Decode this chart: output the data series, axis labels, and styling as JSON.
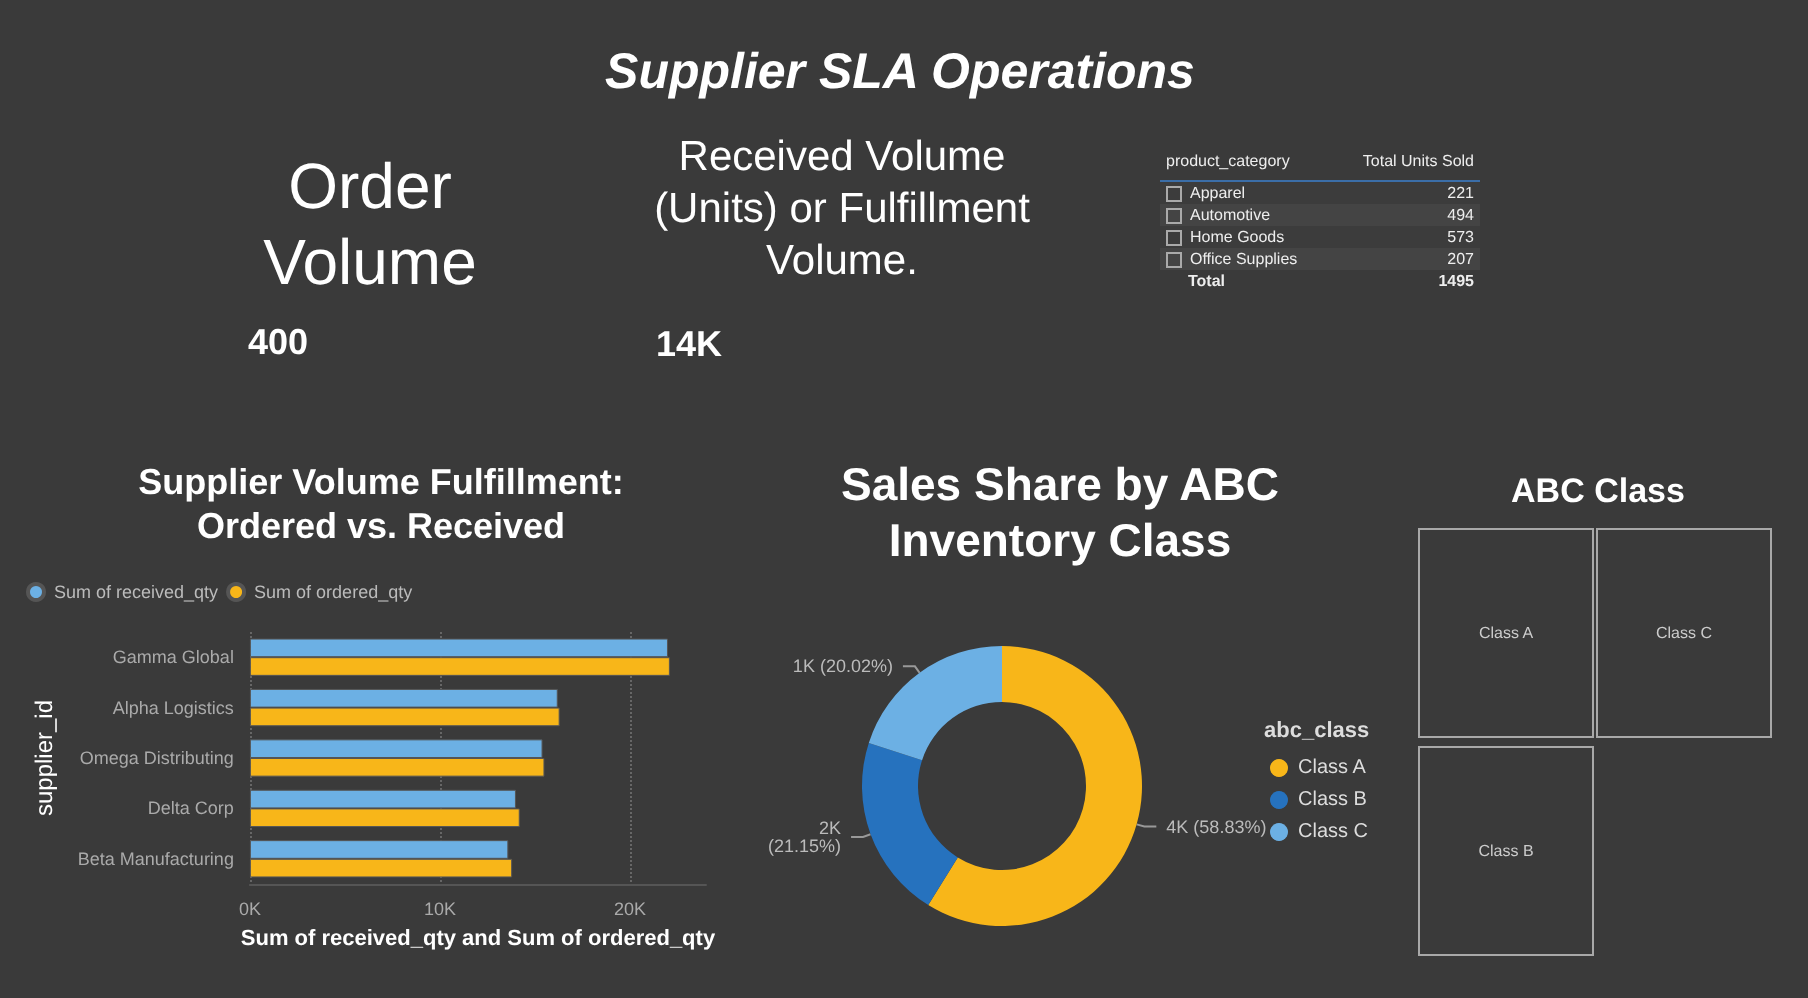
{
  "chart_data": [
    {
      "type": "other",
      "title": "Supplier SLA Operations"
    },
    {
      "type": "other",
      "title": "Order Volume",
      "annotations": [
        "400"
      ]
    },
    {
      "type": "other",
      "title": "Received Volume (Units) or Fulfillment Volume.",
      "annotations": [
        "14K"
      ]
    },
    {
      "type": "other",
      "xlabel": "product_category",
      "ylabel": "Total Units Sold",
      "categories": [
        "Apparel",
        "Automotive",
        "Home Goods",
        "Office Supplies"
      ],
      "values": [
        221,
        494,
        573,
        207
      ],
      "data_labels": true,
      "annotations": [
        "Total",
        "1495"
      ]
    },
    {
      "type": "bar",
      "orientation": "horizontal",
      "title": "Supplier Volume Fulfillment: Ordered vs. Received",
      "xlabel": "Sum of received_qty and Sum of ordered_qty",
      "ylabel": "supplier_id",
      "categories": [
        "Gamma Global",
        "Alpha Logistics",
        "Omega Distributing",
        "Delta Corp",
        "Beta Manufacturing"
      ],
      "series": [
        {
          "name": "Sum of received_qty",
          "color": "#6cb0e4",
          "values": [
            22000,
            16200,
            15400,
            14000,
            13600
          ]
        },
        {
          "name": "Sum of ordered_qty",
          "color": "#f8b619",
          "values": [
            22100,
            16300,
            15500,
            14200,
            13800
          ]
        }
      ],
      "xlim": [
        0,
        24000
      ],
      "xticks": [
        {
          "value": 0,
          "label": "0K"
        },
        {
          "value": 10000,
          "label": "10K"
        },
        {
          "value": 20000,
          "label": "20K"
        }
      ],
      "grid": "x",
      "legend": "top left"
    },
    {
      "type": "donut",
      "title": "Sales Share by ABC Inventory Class",
      "legend_title": "abc_class",
      "categories": [
        "Class A",
        "Class B",
        "Class C"
      ],
      "values": [
        58.83,
        21.15,
        20.02
      ],
      "colors": [
        "#f8b619",
        "#2672be",
        "#6cb0e4"
      ],
      "value_labels": [
        "4K (58.83%)",
        "2K\n(21.15%)",
        "1K (20.02%)"
      ],
      "legend": "right"
    },
    {
      "type": "other",
      "title": "ABC Class",
      "categories": [
        "Class A",
        "Class C",
        "Class B"
      ]
    }
  ]
}
